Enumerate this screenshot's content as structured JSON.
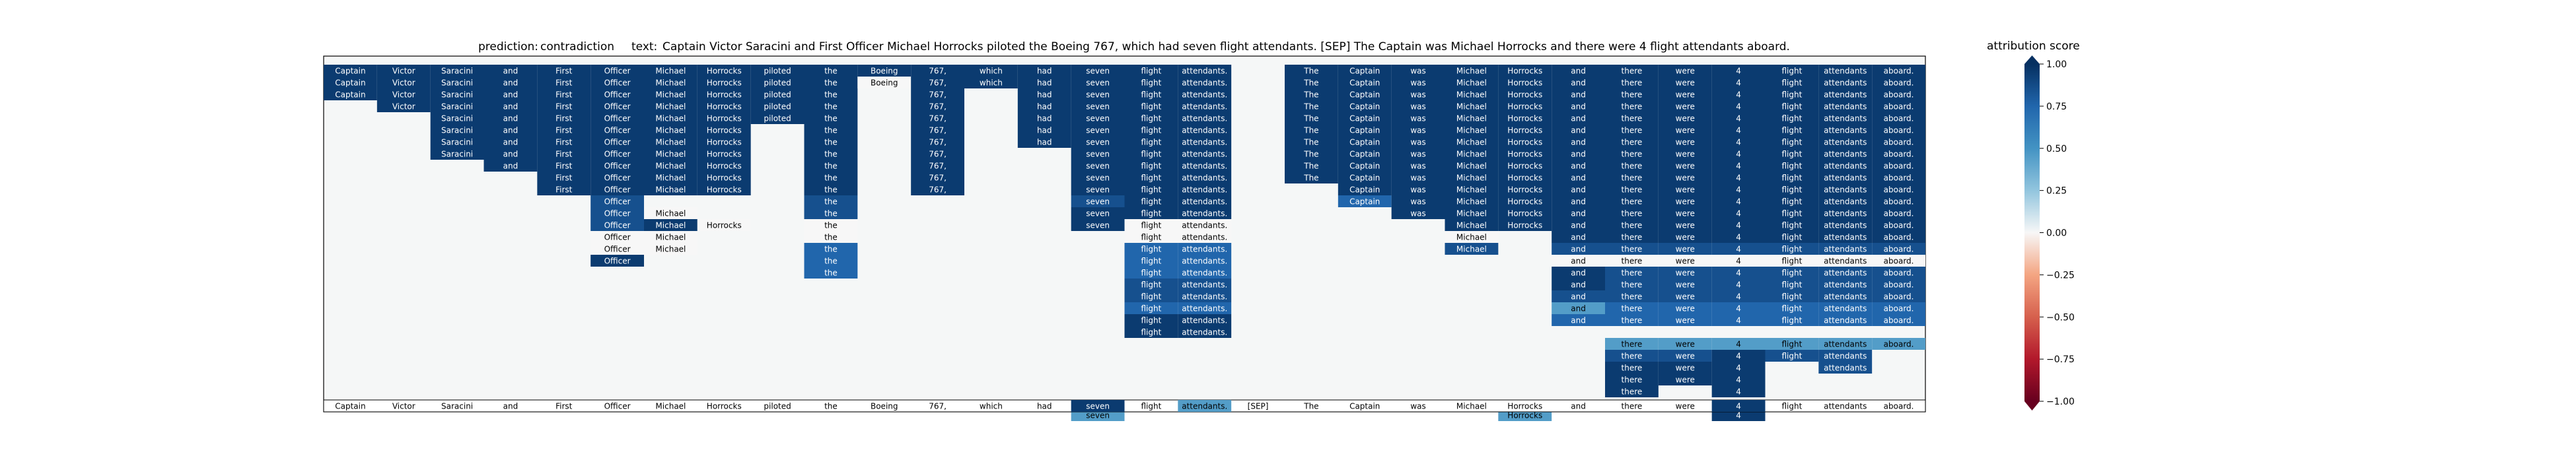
{
  "chart_data": {
    "type": "heatmap",
    "prediction_label": "prediction:",
    "prediction": "contradiction",
    "text_label": "text:",
    "text": "Captain Victor Saracini and First Officer Michael Horrocks piloted the Boeing 767, which had seven flight attendants. [SEP] The Captain was Michael Horrocks and there were 4 flight attendants aboard.",
    "tokens": [
      "Captain",
      "Victor",
      "Saracini",
      "and",
      "First",
      "Officer",
      "Michael",
      "Horrocks",
      "piloted",
      "the",
      "Boeing",
      "767,",
      "which",
      "had",
      "seven",
      "flight",
      "attendants.",
      "[SEP]",
      "The",
      "Captain",
      "was",
      "Michael",
      "Horrocks",
      "and",
      "there",
      "were",
      "4",
      "flight",
      "attendants",
      "aboard."
    ],
    "colorbar": {
      "label": "attribution score",
      "min": -1.0,
      "max": 1.0,
      "ticks": [
        "1.00",
        "0.75",
        "0.50",
        "0.25",
        "0.00",
        "−0.25",
        "−0.50",
        "−0.75",
        "−1.00"
      ],
      "extend": "both",
      "colormap": "RdBu"
    },
    "num_levels": 29,
    "baseline_row": "last",
    "columns": [
      {
        "col": 0,
        "spans": [
          {
            "from": 0,
            "to": 2,
            "v": 0.95
          }
        ]
      },
      {
        "col": 1,
        "spans": [
          {
            "from": 0,
            "to": 3,
            "v": 0.95
          }
        ]
      },
      {
        "col": 2,
        "spans": [
          {
            "from": 0,
            "to": 7,
            "v": 0.95
          }
        ]
      },
      {
        "col": 3,
        "spans": [
          {
            "from": 0,
            "to": 8,
            "v": 0.95
          }
        ]
      },
      {
        "col": 4,
        "spans": [
          {
            "from": 0,
            "to": 10,
            "v": 0.95
          }
        ]
      },
      {
        "col": 5,
        "spans": [
          {
            "from": 0,
            "to": 10,
            "v": 0.95
          },
          {
            "from": 11,
            "to": 13,
            "v": 0.85
          },
          {
            "from": 14,
            "to": 14,
            "v": 0.0
          },
          {
            "from": 15,
            "to": 15,
            "v": 0.0
          },
          {
            "from": 16,
            "to": 16,
            "v": 0.95
          }
        ]
      },
      {
        "col": 6,
        "spans": [
          {
            "from": 0,
            "to": 10,
            "v": 0.95
          },
          {
            "from": 12,
            "to": 12,
            "v": 0.0
          },
          {
            "from": 13,
            "to": 13,
            "v": 0.95
          },
          {
            "from": 14,
            "to": 14,
            "v": 0.0
          },
          {
            "from": 15,
            "to": 15,
            "v": 0.0
          }
        ]
      },
      {
        "col": 7,
        "spans": [
          {
            "from": 0,
            "to": 10,
            "v": 0.95
          },
          {
            "from": 13,
            "to": 13,
            "v": 0.0
          }
        ]
      },
      {
        "col": 8,
        "spans": [
          {
            "from": 0,
            "to": 4,
            "v": 0.95
          }
        ]
      },
      {
        "col": 9,
        "spans": [
          {
            "from": 0,
            "to": 10,
            "v": 0.95
          },
          {
            "from": 11,
            "to": 12,
            "v": 0.85
          },
          {
            "from": 13,
            "to": 13,
            "v": 0.0
          },
          {
            "from": 14,
            "to": 14,
            "v": 0.0
          },
          {
            "from": 15,
            "to": 16,
            "v": 0.75
          },
          {
            "from": 17,
            "to": 17,
            "v": 0.75
          }
        ]
      },
      {
        "col": 10,
        "spans": [
          {
            "from": 0,
            "to": 0,
            "v": 0.95
          },
          {
            "from": 1,
            "to": 1,
            "v": 0.0
          }
        ]
      },
      {
        "col": 11,
        "spans": [
          {
            "from": 0,
            "to": 10,
            "v": 0.95
          }
        ]
      },
      {
        "col": 12,
        "spans": [
          {
            "from": 0,
            "to": 1,
            "v": 0.95
          }
        ]
      },
      {
        "col": 13,
        "spans": [
          {
            "from": 0,
            "to": 6,
            "v": 0.95
          }
        ]
      },
      {
        "col": 14,
        "spans": [
          {
            "from": 0,
            "to": 10,
            "v": 0.95
          },
          {
            "from": 11,
            "to": 11,
            "v": 0.85
          },
          {
            "from": 12,
            "to": 13,
            "v": 0.95
          },
          {
            "from": 29,
            "to": 29,
            "v": 0.45
          }
        ]
      },
      {
        "col": 15,
        "spans": [
          {
            "from": 0,
            "to": 12,
            "v": 0.95
          },
          {
            "from": 13,
            "to": 14,
            "v": 0.0
          },
          {
            "from": 15,
            "to": 17,
            "v": 0.75
          },
          {
            "from": 18,
            "to": 19,
            "v": 0.85
          },
          {
            "from": 20,
            "to": 20,
            "v": 0.75
          },
          {
            "from": 21,
            "to": 22,
            "v": 0.95
          }
        ]
      },
      {
        "col": 16,
        "spans": [
          {
            "from": 0,
            "to": 12,
            "v": 0.95
          },
          {
            "from": 13,
            "to": 14,
            "v": 0.0
          },
          {
            "from": 15,
            "to": 17,
            "v": 0.75
          },
          {
            "from": 18,
            "to": 19,
            "v": 0.85
          },
          {
            "from": 20,
            "to": 20,
            "v": 0.75
          },
          {
            "from": 21,
            "to": 22,
            "v": 0.95
          }
        ]
      },
      {
        "col": 17,
        "spans": []
      },
      {
        "col": 18,
        "spans": [
          {
            "from": 0,
            "to": 9,
            "v": 0.95
          }
        ]
      },
      {
        "col": 19,
        "spans": [
          {
            "from": 0,
            "to": 10,
            "v": 0.95
          },
          {
            "from": 11,
            "to": 11,
            "v": 0.75
          }
        ]
      },
      {
        "col": 20,
        "spans": [
          {
            "from": 0,
            "to": 12,
            "v": 0.95
          }
        ]
      },
      {
        "col": 21,
        "spans": [
          {
            "from": 0,
            "to": 13,
            "v": 0.95
          },
          {
            "from": 14,
            "to": 14,
            "v": 0.0
          },
          {
            "from": 15,
            "to": 15,
            "v": 0.85
          }
        ]
      },
      {
        "col": 22,
        "spans": [
          {
            "from": 0,
            "to": 13,
            "v": 0.95
          },
          {
            "from": 29,
            "to": 29,
            "v": 0.45
          }
        ]
      },
      {
        "col": 23,
        "spans": [
          {
            "from": 0,
            "to": 14,
            "v": 0.95
          },
          {
            "from": 15,
            "to": 15,
            "v": 0.85
          },
          {
            "from": 16,
            "to": 16,
            "v": 0.0
          },
          {
            "from": 17,
            "to": 18,
            "v": 0.95
          },
          {
            "from": 19,
            "to": 19,
            "v": 0.85
          },
          {
            "from": 20,
            "to": 20,
            "v": 0.45
          },
          {
            "from": 21,
            "to": 21,
            "v": 0.75
          }
        ]
      },
      {
        "col": 24,
        "spans": [
          {
            "from": 0,
            "to": 14,
            "v": 0.95
          },
          {
            "from": 15,
            "to": 15,
            "v": 0.85
          },
          {
            "from": 16,
            "to": 16,
            "v": 0.0
          },
          {
            "from": 17,
            "to": 19,
            "v": 0.85
          },
          {
            "from": 20,
            "to": 21,
            "v": 0.75
          },
          {
            "from": 23,
            "to": 23,
            "v": 0.45
          },
          {
            "from": 24,
            "to": 24,
            "v": 0.85
          },
          {
            "from": 25,
            "to": 26,
            "v": 0.95
          },
          {
            "from": 27,
            "to": 27,
            "v": 0.95
          }
        ]
      },
      {
        "col": 25,
        "spans": [
          {
            "from": 0,
            "to": 14,
            "v": 0.95
          },
          {
            "from": 15,
            "to": 15,
            "v": 0.85
          },
          {
            "from": 16,
            "to": 16,
            "v": 0.0
          },
          {
            "from": 17,
            "to": 19,
            "v": 0.85
          },
          {
            "from": 20,
            "to": 21,
            "v": 0.75
          },
          {
            "from": 23,
            "to": 23,
            "v": 0.45
          },
          {
            "from": 24,
            "to": 24,
            "v": 0.85
          },
          {
            "from": 25,
            "to": 26,
            "v": 0.95
          }
        ]
      },
      {
        "col": 26,
        "spans": [
          {
            "from": 0,
            "to": 14,
            "v": 0.95
          },
          {
            "from": 15,
            "to": 15,
            "v": 0.85
          },
          {
            "from": 16,
            "to": 16,
            "v": 0.0
          },
          {
            "from": 17,
            "to": 19,
            "v": 0.85
          },
          {
            "from": 20,
            "to": 21,
            "v": 0.75
          },
          {
            "from": 23,
            "to": 23,
            "v": 0.45
          },
          {
            "from": 24,
            "to": 26,
            "v": 0.95
          },
          {
            "from": 27,
            "to": 27,
            "v": 0.95
          },
          {
            "from": 29,
            "to": 29,
            "v": 0.95
          }
        ]
      },
      {
        "col": 27,
        "spans": [
          {
            "from": 0,
            "to": 14,
            "v": 0.95
          },
          {
            "from": 15,
            "to": 15,
            "v": 0.85
          },
          {
            "from": 16,
            "to": 16,
            "v": 0.0
          },
          {
            "from": 17,
            "to": 19,
            "v": 0.85
          },
          {
            "from": 20,
            "to": 21,
            "v": 0.75
          },
          {
            "from": 23,
            "to": 23,
            "v": 0.45
          },
          {
            "from": 24,
            "to": 24,
            "v": 0.85
          }
        ]
      },
      {
        "col": 28,
        "spans": [
          {
            "from": 0,
            "to": 14,
            "v": 0.95
          },
          {
            "from": 15,
            "to": 15,
            "v": 0.85
          },
          {
            "from": 16,
            "to": 16,
            "v": 0.0
          },
          {
            "from": 17,
            "to": 19,
            "v": 0.85
          },
          {
            "from": 20,
            "to": 21,
            "v": 0.75
          },
          {
            "from": 23,
            "to": 23,
            "v": 0.45
          },
          {
            "from": 24,
            "to": 25,
            "v": 0.85
          }
        ]
      },
      {
        "col": 29,
        "spans": [
          {
            "from": 0,
            "to": 14,
            "v": 0.95
          },
          {
            "from": 15,
            "to": 15,
            "v": 0.85
          },
          {
            "from": 16,
            "to": 16,
            "v": 0.0
          },
          {
            "from": 17,
            "to": 19,
            "v": 0.85
          },
          {
            "from": 20,
            "to": 21,
            "v": 0.75
          },
          {
            "from": 23,
            "to": 23,
            "v": 0.45
          }
        ]
      }
    ],
    "baseline_values": [
      {
        "col": 14,
        "v": 0.95
      },
      {
        "col": 16,
        "v": 0.45
      },
      {
        "col": 26,
        "v": 0.95
      }
    ]
  }
}
